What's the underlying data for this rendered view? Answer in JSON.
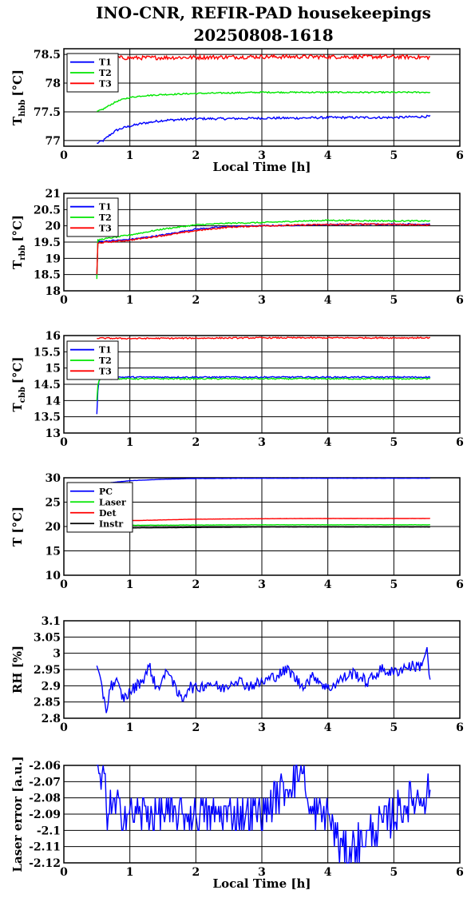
{
  "figure": {
    "title_line1": "INO-CNR, REFIR-PAD housekeepings",
    "title_line2": "20250808-1618"
  },
  "chart_data": [
    {
      "type": "line",
      "ylabel": "T",
      "ylabel_sub": "hbb",
      "ylabel_unit": "[°C]",
      "xlabel": "Local Time [h]",
      "xlim": [
        0,
        6
      ],
      "ylim": [
        76.9,
        78.6
      ],
      "xticks": [
        "0",
        "1",
        "2",
        "3",
        "4",
        "5",
        "6"
      ],
      "yticks": [
        {
          "v": 77,
          "label": "77"
        },
        {
          "v": 77.5,
          "label": "77.5"
        },
        {
          "v": 78,
          "label": "78"
        },
        {
          "v": 78.5,
          "label": "78.5"
        }
      ],
      "grid": true,
      "legend_position": "top-left",
      "series": [
        {
          "name": "T1",
          "color": "#0000ff",
          "x": [
            0.5,
            0.6,
            0.7,
            0.8,
            0.9,
            1.0,
            1.2,
            1.5,
            2.0,
            2.5,
            3.0,
            3.5,
            4.0,
            4.5,
            5.0,
            5.55
          ],
          "y": [
            76.95,
            77.0,
            77.1,
            77.18,
            77.22,
            77.25,
            77.3,
            77.35,
            77.38,
            77.38,
            77.39,
            77.39,
            77.4,
            77.4,
            77.4,
            77.42
          ],
          "noise": 0.02
        },
        {
          "name": "T2",
          "color": "#00e600",
          "x": [
            0.5,
            0.6,
            0.7,
            0.8,
            0.9,
            1.0,
            1.2,
            1.5,
            2.0,
            2.5,
            3.0,
            3.5,
            4.0,
            4.5,
            5.0,
            5.55
          ],
          "y": [
            77.5,
            77.55,
            77.62,
            77.68,
            77.72,
            77.75,
            77.78,
            77.8,
            77.82,
            77.83,
            77.84,
            77.84,
            77.84,
            77.84,
            77.84,
            77.84
          ],
          "noise": 0.012
        },
        {
          "name": "T3",
          "color": "#ff0000",
          "x": [
            0.5,
            1.0,
            2.0,
            3.0,
            4.0,
            5.0,
            5.55
          ],
          "y": [
            78.45,
            78.44,
            78.45,
            78.46,
            78.46,
            78.46,
            78.45
          ],
          "noise": 0.035
        }
      ]
    },
    {
      "type": "line",
      "ylabel": "T",
      "ylabel_sub": "rbb",
      "ylabel_unit": "[°C]",
      "xlabel": "",
      "xlim": [
        0,
        6
      ],
      "ylim": [
        18,
        21
      ],
      "xticks": [
        "0",
        "1",
        "2",
        "3",
        "4",
        "5",
        "6"
      ],
      "yticks": [
        {
          "v": 18,
          "label": "18"
        },
        {
          "v": 18.5,
          "label": "18.5"
        },
        {
          "v": 19,
          "label": "19"
        },
        {
          "v": 19.5,
          "label": "19.5"
        },
        {
          "v": 20,
          "label": "20"
        },
        {
          "v": 20.5,
          "label": "20.5"
        },
        {
          "v": 21,
          "label": "21"
        }
      ],
      "grid": true,
      "legend_position": "top-left",
      "series": [
        {
          "name": "T1",
          "color": "#0000ff",
          "x": [
            0.5,
            0.51,
            0.55,
            1.0,
            1.5,
            2.0,
            2.5,
            3.0,
            3.5,
            4.0,
            4.5,
            5.0,
            5.55
          ],
          "y": [
            18.45,
            19.5,
            19.52,
            19.58,
            19.72,
            19.9,
            19.98,
            20.0,
            20.02,
            20.04,
            20.05,
            20.05,
            20.05
          ],
          "noise": 0.02
        },
        {
          "name": "T2",
          "color": "#00e600",
          "x": [
            0.5,
            0.51,
            0.55,
            1.0,
            1.5,
            2.0,
            2.5,
            3.0,
            3.5,
            4.0,
            4.5,
            5.0,
            5.55
          ],
          "y": [
            18.35,
            19.55,
            19.58,
            19.72,
            19.9,
            20.03,
            20.08,
            20.1,
            20.14,
            20.17,
            20.16,
            20.15,
            20.15
          ],
          "noise": 0.02
        },
        {
          "name": "T3",
          "color": "#ff0000",
          "x": [
            0.5,
            0.51,
            0.55,
            1.0,
            1.5,
            2.0,
            2.5,
            3.0,
            3.5,
            4.0,
            4.5,
            5.0,
            5.55
          ],
          "y": [
            18.5,
            19.45,
            19.48,
            19.56,
            19.7,
            19.85,
            19.96,
            20.0,
            20.02,
            20.04,
            20.05,
            20.05,
            20.02
          ],
          "noise": 0.02
        }
      ]
    },
    {
      "type": "line",
      "ylabel": "T",
      "ylabel_sub": "cbb",
      "ylabel_unit": "[°C]",
      "xlabel": "",
      "xlim": [
        0,
        6
      ],
      "ylim": [
        13,
        16
      ],
      "xticks": [
        "0",
        "1",
        "2",
        "3",
        "4",
        "5",
        "6"
      ],
      "yticks": [
        {
          "v": 13,
          "label": "13"
        },
        {
          "v": 13.5,
          "label": "13.5"
        },
        {
          "v": 14,
          "label": "14"
        },
        {
          "v": 14.5,
          "label": "14.5"
        },
        {
          "v": 15,
          "label": "15"
        },
        {
          "v": 15.5,
          "label": "15.5"
        },
        {
          "v": 16,
          "label": "16"
        }
      ],
      "grid": true,
      "legend_position": "top-left",
      "series": [
        {
          "name": "T1",
          "color": "#0000ff",
          "x": [
            0.5,
            0.51,
            0.53,
            0.56,
            0.6,
            1.0,
            2.0,
            3.0,
            4.0,
            5.0,
            5.55
          ],
          "y": [
            13.6,
            14.2,
            14.6,
            14.7,
            14.72,
            14.72,
            14.72,
            14.72,
            14.72,
            14.72,
            14.72
          ],
          "noise": 0.02
        },
        {
          "name": "T2",
          "color": "#00e600",
          "x": [
            0.5,
            0.51,
            0.53,
            0.56,
            0.6,
            1.0,
            2.0,
            3.0,
            4.0,
            5.0,
            5.55
          ],
          "y": [
            14.0,
            14.4,
            14.6,
            14.66,
            14.67,
            14.67,
            14.67,
            14.67,
            14.67,
            14.67,
            14.67
          ],
          "noise": 0.02
        },
        {
          "name": "T3",
          "color": "#ff0000",
          "x": [
            0.5,
            1.0,
            2.0,
            3.0,
            4.0,
            5.0,
            5.55
          ],
          "y": [
            15.92,
            15.91,
            15.92,
            15.93,
            15.93,
            15.93,
            15.93
          ],
          "noise": 0.02
        }
      ]
    },
    {
      "type": "line",
      "ylabel": "T [°C]",
      "ylabel_sub": "",
      "ylabel_unit": "",
      "xlabel": "",
      "xlim": [
        0,
        6
      ],
      "ylim": [
        10,
        30
      ],
      "xticks": [
        "0",
        "1",
        "2",
        "3",
        "4",
        "5",
        "6"
      ],
      "yticks": [
        {
          "v": 10,
          "label": "10"
        },
        {
          "v": 15,
          "label": "15"
        },
        {
          "v": 20,
          "label": "20"
        },
        {
          "v": 25,
          "label": "25"
        },
        {
          "v": 30,
          "label": "30"
        }
      ],
      "grid": true,
      "legend_position": "top-left",
      "series": [
        {
          "name": "PC",
          "color": "#0000ff",
          "x": [
            0.5,
            1.0,
            1.5,
            2.0,
            3.0,
            4.0,
            5.0,
            5.55
          ],
          "y": [
            28.7,
            29.4,
            29.7,
            29.85,
            29.9,
            29.9,
            29.9,
            29.9
          ],
          "noise": 0.02
        },
        {
          "name": "Laser",
          "color": "#00e600",
          "x": [
            0.5,
            1.0,
            2.0,
            3.0,
            4.0,
            5.0,
            5.55
          ],
          "y": [
            20.2,
            20.25,
            20.3,
            20.35,
            20.35,
            20.35,
            20.35
          ],
          "noise": 0.03
        },
        {
          "name": "Det",
          "color": "#ff0000",
          "x": [
            0.5,
            1.0,
            2.0,
            3.0,
            4.0,
            5.0,
            5.55
          ],
          "y": [
            21.0,
            21.2,
            21.5,
            21.6,
            21.65,
            21.65,
            21.65
          ],
          "noise": 0.02
        },
        {
          "name": "Instr",
          "color": "#000000",
          "x": [
            0.5,
            1.0,
            2.0,
            3.0,
            4.0,
            5.0,
            5.55
          ],
          "y": [
            19.6,
            19.7,
            19.8,
            19.9,
            19.9,
            19.9,
            19.9
          ],
          "noise": 0.015
        }
      ]
    },
    {
      "type": "line",
      "ylabel": "RH [%]",
      "ylabel_sub": "",
      "ylabel_unit": "",
      "xlabel": "",
      "xlim": [
        0,
        6
      ],
      "ylim": [
        2.8,
        3.1
      ],
      "xticks": [
        "0",
        "1",
        "2",
        "3",
        "4",
        "5",
        "6"
      ],
      "yticks": [
        {
          "v": 2.8,
          "label": "2.8"
        },
        {
          "v": 2.85,
          "label": "2.85"
        },
        {
          "v": 2.9,
          "label": "2.9"
        },
        {
          "v": 2.95,
          "label": "2.95"
        },
        {
          "v": 3.0,
          "label": "3"
        },
        {
          "v": 3.05,
          "label": "3.05"
        },
        {
          "v": 3.1,
          "label": "3.1"
        }
      ],
      "grid": true,
      "legend_position": "",
      "series": [
        {
          "name": "",
          "color": "#0000ff",
          "x": [
            0.5,
            0.55,
            0.6,
            0.65,
            0.7,
            0.8,
            0.9,
            1.0,
            1.1,
            1.2,
            1.3,
            1.4,
            1.5,
            1.6,
            1.7,
            1.8,
            1.9,
            2.0,
            2.2,
            2.4,
            2.6,
            2.8,
            3.0,
            3.2,
            3.4,
            3.6,
            3.8,
            4.0,
            4.2,
            4.4,
            4.6,
            4.8,
            5.0,
            5.2,
            5.4,
            5.5,
            5.55
          ],
          "y": [
            2.96,
            2.91,
            2.87,
            2.82,
            2.9,
            2.91,
            2.86,
            2.88,
            2.9,
            2.92,
            2.96,
            2.89,
            2.92,
            2.95,
            2.88,
            2.86,
            2.9,
            2.89,
            2.91,
            2.89,
            2.92,
            2.9,
            2.91,
            2.93,
            2.95,
            2.9,
            2.93,
            2.89,
            2.92,
            2.94,
            2.91,
            2.95,
            2.94,
            2.96,
            2.96,
            3.01,
            2.91
          ],
          "noise": 0.018
        }
      ]
    },
    {
      "type": "line",
      "ylabel": "Laser error [a.u.]",
      "ylabel_sub": "",
      "ylabel_unit": "",
      "xlabel": "Local Time [h]",
      "xlim": [
        0,
        6
      ],
      "ylim": [
        -2.12,
        -2.06
      ],
      "xticks": [
        "0",
        "1",
        "2",
        "3",
        "4",
        "5",
        "6"
      ],
      "yticks": [
        {
          "v": -2.12,
          "label": "-2.12"
        },
        {
          "v": -2.11,
          "label": "-2.11"
        },
        {
          "v": -2.1,
          "label": "-2.1"
        },
        {
          "v": -2.09,
          "label": "-2.09"
        },
        {
          "v": -2.08,
          "label": "-2.08"
        },
        {
          "v": -2.07,
          "label": "-2.07"
        },
        {
          "v": -2.06,
          "label": "-2.06"
        }
      ],
      "grid": true,
      "legend_position": "",
      "levels": [
        -2.12,
        -2.11,
        -2.105,
        -2.1,
        -2.095,
        -2.09,
        -2.085,
        -2.08,
        -2.075,
        -2.07,
        -2.065,
        -2.06
      ],
      "series": [
        {
          "name": "",
          "color": "#0000ff",
          "x": [
            0.5,
            0.55,
            0.6,
            0.65,
            0.7,
            1.0,
            2.0,
            3.0,
            3.65,
            3.7,
            4.0,
            4.25,
            5.0,
            5.55
          ],
          "y": [
            -2.06,
            -2.075,
            -2.06,
            -2.09,
            -2.085,
            -2.09,
            -2.09,
            -2.09,
            -2.06,
            -2.09,
            -2.09,
            -2.115,
            -2.09,
            -2.075
          ],
          "noise": 0.012
        }
      ]
    }
  ]
}
